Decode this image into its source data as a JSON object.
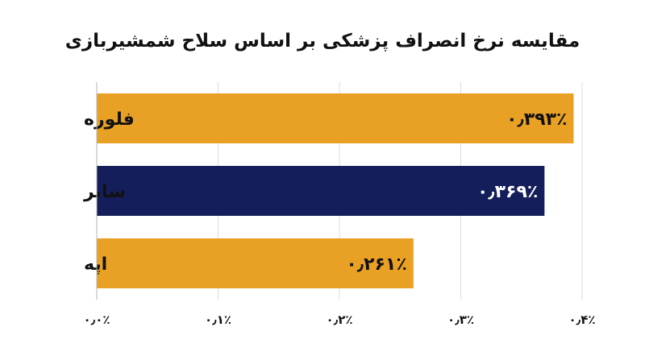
{
  "chart_data": {
    "type": "bar",
    "orientation": "horizontal",
    "title": "مقایسه نرخ انصراف پزشکی بر اساس سلاح شمشیربازی",
    "categories": [
      "فلوره",
      "سابر",
      "اپه"
    ],
    "values": [
      0.393,
      0.369,
      0.261
    ],
    "value_labels": [
      "۰٫۳۹۳٪",
      "۰٫۳۶۹٪",
      "۰٫۲۶۱٪"
    ],
    "bar_colors": [
      "#E8A124",
      "#141E5A",
      "#E8A124"
    ],
    "value_label_colors": [
      "#111111",
      "#ffffff",
      "#111111"
    ],
    "xlim": [
      0,
      0.4
    ],
    "x_ticks": [
      0,
      0.1,
      0.2,
      0.3,
      0.4
    ],
    "x_tick_labels": [
      "۰٫۰٪",
      "۰٫۱٪",
      "۰٫۲٪",
      "۰٫۳٪",
      "۰٫۴٪"
    ],
    "grid": "vertical",
    "xlabel": "",
    "ylabel": ""
  }
}
